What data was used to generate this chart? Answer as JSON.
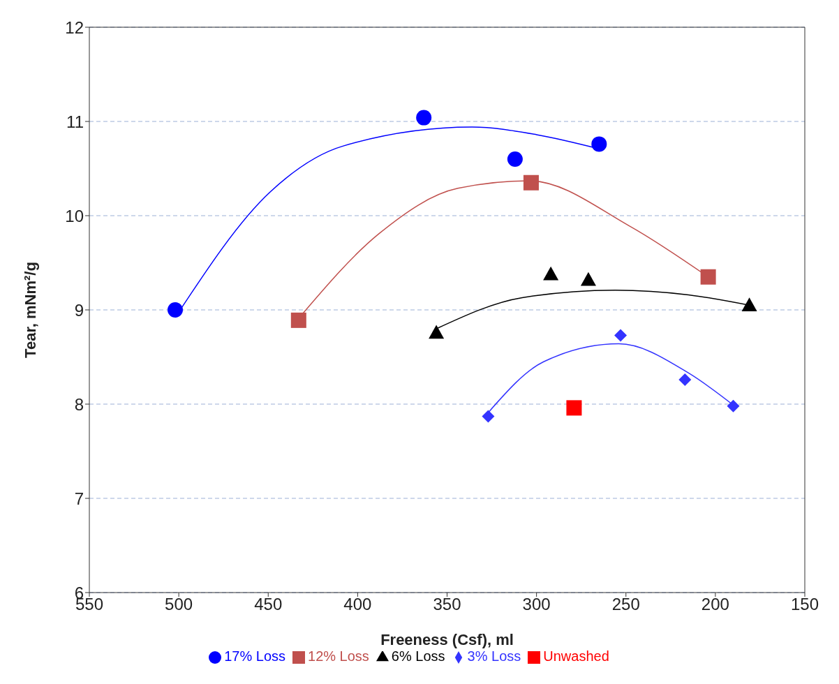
{
  "chart_data": {
    "type": "scatter",
    "xlabel": "Freeness (Csf), ml",
    "ylabel": "Tear, mNm²/g",
    "xlim": [
      550,
      150
    ],
    "xticks": [
      550,
      500,
      450,
      400,
      350,
      300,
      250,
      200,
      150
    ],
    "ylim": [
      6,
      12
    ],
    "yticks": [
      6,
      7,
      8,
      9,
      10,
      11,
      12
    ],
    "grid": "y",
    "legend": "bottom",
    "series": [
      {
        "name": "17% Loss",
        "color": "#0000ff",
        "marker": "circle",
        "x": [
          502,
          363,
          312,
          265
        ],
        "values": [
          9.0,
          11.04,
          10.6,
          10.76
        ]
      },
      {
        "name": "12% Loss",
        "color": "#c0504d",
        "marker": "square",
        "x": [
          433,
          303,
          204
        ],
        "values": [
          8.89,
          10.35,
          9.35
        ]
      },
      {
        "name": "6% Loss",
        "color": "#000000",
        "marker": "triangle",
        "x": [
          356,
          292,
          271,
          181
        ],
        "values": [
          8.76,
          9.38,
          9.32,
          9.05
        ]
      },
      {
        "name": "3% Loss",
        "color": "#3333ff",
        "marker": "diamond",
        "x": [
          327,
          253,
          217,
          190
        ],
        "values": [
          7.87,
          8.73,
          8.26,
          7.98
        ]
      },
      {
        "name": "Unwashed",
        "color": "#ff0000",
        "marker": "square",
        "x": [
          279
        ],
        "values": [
          7.96
        ]
      },
      {
        "type": "line",
        "color": "#0000ff",
        "marker": "none",
        "x": [
          502,
          449,
          408,
          336,
          300,
          265
        ],
        "values": [
          8.92,
          10.25,
          10.74,
          10.94,
          10.86,
          10.71
        ]
      },
      {
        "type": "line",
        "color": "#c0504d",
        "marker": "none",
        "x": [
          433,
          388,
          344,
          304,
          248,
          204
        ],
        "values": [
          8.91,
          9.81,
          10.29,
          10.37,
          9.89,
          9.35
        ]
      },
      {
        "type": "line",
        "color": "#000000",
        "marker": "none",
        "x": [
          356,
          308,
          256,
          215,
          181
        ],
        "values": [
          8.8,
          9.13,
          9.21,
          9.16,
          9.05
        ]
      },
      {
        "type": "line",
        "color": "#3333ff",
        "marker": "none",
        "x": [
          327,
          296,
          254,
          215,
          190
        ],
        "values": [
          7.91,
          8.45,
          8.64,
          8.33,
          7.99
        ]
      }
    ]
  }
}
